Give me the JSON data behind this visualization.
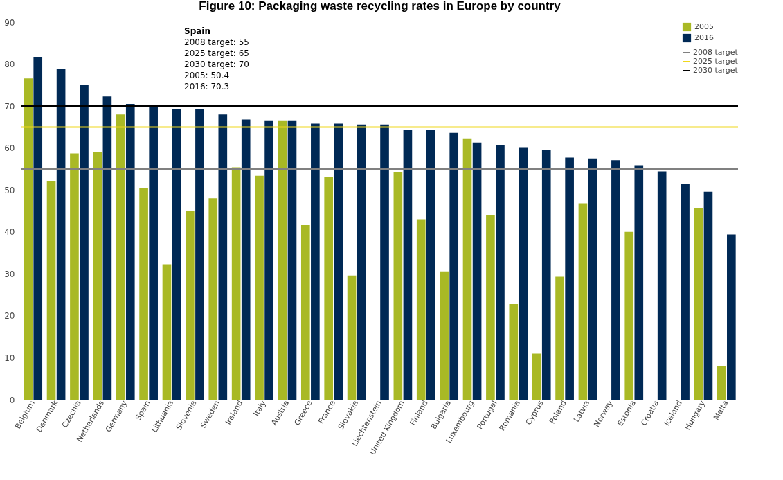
{
  "chart_data": {
    "type": "bar",
    "title": "Figure 10: Packaging waste recycling rates in Europe by country",
    "categories": [
      "Belgium",
      "Denmark",
      "Czechia",
      "Netherlands",
      "Germany",
      "Spain",
      "Lithuania",
      "Slovenia",
      "Sweden",
      "Ireland",
      "Italy",
      "Austria",
      "Greece",
      "France",
      "Slovakia",
      "Liechtenstein",
      "United Kingdom",
      "Finland",
      "Bulgaria",
      "Luxembourg",
      "Portugal",
      "Romania",
      "Cyprus",
      "Poland",
      "Latvia",
      "Norway",
      "Estonia",
      "Croatia",
      "Iceland",
      "Hungary",
      "Malta"
    ],
    "series": [
      {
        "name": "2005",
        "color": "#a9b925",
        "values": [
          76.6,
          52.2,
          58.7,
          59.1,
          68.0,
          50.4,
          32.3,
          45.1,
          48.0,
          55.4,
          53.4,
          66.6,
          41.6,
          53.0,
          29.6,
          null,
          54.2,
          43.0,
          30.6,
          62.3,
          44.1,
          22.8,
          11.0,
          29.3,
          46.8,
          null,
          40.0,
          null,
          null,
          45.7,
          8.0
        ]
      },
      {
        "name": "2016",
        "color": "#002955",
        "values": [
          81.7,
          78.8,
          75.1,
          72.3,
          70.5,
          70.3,
          69.3,
          69.3,
          68.0,
          66.8,
          66.6,
          66.6,
          65.8,
          65.8,
          65.6,
          65.6,
          64.4,
          64.4,
          63.6,
          61.3,
          60.7,
          60.2,
          59.5,
          57.7,
          57.5,
          57.1,
          55.9,
          54.4,
          51.4,
          49.6,
          39.4
        ]
      }
    ],
    "ref_lines": [
      {
        "axis": "y",
        "value": 55,
        "label": "2008 target",
        "color": "#808080"
      },
      {
        "axis": "y",
        "value": 65,
        "label": "2025 target",
        "color": "#f0d81c"
      },
      {
        "axis": "y",
        "value": 70,
        "label": "2030 target",
        "color": "#000000"
      }
    ],
    "ylim": [
      0,
      90
    ],
    "yticks": [
      0,
      10,
      20,
      30,
      40,
      50,
      60,
      70,
      80,
      90
    ],
    "grid": false,
    "legend": "top right",
    "annotations": [
      "Spain",
      "2008 target: 55",
      "2025 target: 65",
      "2030 target: 70",
      "2005: 50.4",
      "2016: 70.3"
    ]
  }
}
